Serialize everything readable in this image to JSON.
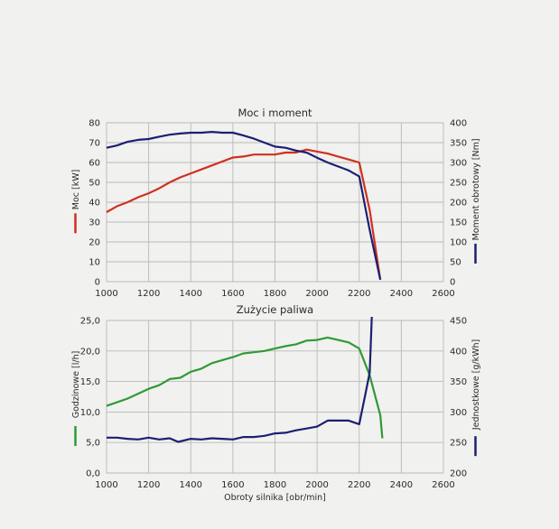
{
  "chart_data": [
    {
      "type": "line",
      "title": "Moc i moment",
      "xlabel": "",
      "ylabel_left": "Moc [kW]",
      "ylabel_right": "Moment obrotowy [Nm]",
      "xlim": [
        1000,
        2600
      ],
      "ylim_left": [
        0,
        80
      ],
      "ylim_right": [
        0,
        400
      ],
      "x_ticks": [
        "1000",
        "1200",
        "1400",
        "1600",
        "1800",
        "2000",
        "2200",
        "2400",
        "2600"
      ],
      "y_left_ticks": [
        "0",
        "10",
        "20",
        "30",
        "40",
        "50",
        "60",
        "70",
        "80"
      ],
      "y_right_ticks": [
        "0",
        "50",
        "100",
        "150",
        "200",
        "250",
        "300",
        "350",
        "400"
      ],
      "grid": true,
      "series": [
        {
          "axis": "left",
          "color": "#d0301f",
          "x": [
            1000,
            1050,
            1100,
            1150,
            1200,
            1250,
            1300,
            1350,
            1400,
            1450,
            1500,
            1550,
            1600,
            1650,
            1700,
            1750,
            1800,
            1850,
            1900,
            1950,
            2000,
            2050,
            2100,
            2150,
            2200,
            2250,
            2300
          ],
          "y": [
            35,
            38,
            40,
            42.5,
            44.5,
            47,
            50,
            52.5,
            54.5,
            56.5,
            58.5,
            60.5,
            62.5,
            63,
            64,
            64,
            64,
            65,
            65,
            66.5,
            65.5,
            64.5,
            63,
            61.5,
            60,
            36,
            1
          ]
        },
        {
          "axis": "right",
          "color": "#1b1f73",
          "x": [
            1000,
            1050,
            1100,
            1150,
            1200,
            1250,
            1300,
            1350,
            1400,
            1450,
            1500,
            1550,
            1600,
            1650,
            1700,
            1750,
            1800,
            1850,
            1900,
            1950,
            2000,
            2050,
            2100,
            2150,
            2200,
            2250,
            2300
          ],
          "y": [
            337,
            343,
            352,
            357,
            359,
            365,
            370,
            373,
            375,
            375,
            377,
            375,
            375,
            368,
            360,
            350,
            340,
            337,
            330,
            325,
            312,
            300,
            290,
            280,
            265,
            130,
            5
          ]
        }
      ]
    },
    {
      "type": "line",
      "title": "Zużycie paliwa",
      "xlabel": "Obroty silnika [obr/min]",
      "ylabel_left": "Godzinowe [l/h]",
      "ylabel_right": "Jednostkowe [g/kWh]",
      "xlim": [
        1000,
        2600
      ],
      "ylim_left": [
        0,
        25
      ],
      "ylim_right": [
        200,
        450
      ],
      "x_ticks": [
        "1000",
        "1200",
        "1400",
        "1600",
        "1800",
        "2000",
        "2200",
        "2400",
        "2600"
      ],
      "y_left_ticks": [
        "0,0",
        "5,0",
        "10,0",
        "15,0",
        "20,0",
        "25,0"
      ],
      "y_right_ticks": [
        "200",
        "250",
        "300",
        "350",
        "400",
        "450"
      ],
      "grid": true,
      "series": [
        {
          "axis": "left",
          "color": "#2f9a35",
          "x": [
            1000,
            1050,
            1100,
            1150,
            1200,
            1250,
            1300,
            1350,
            1400,
            1450,
            1500,
            1550,
            1600,
            1650,
            1700,
            1750,
            1800,
            1850,
            1900,
            1950,
            2000,
            2050,
            2100,
            2150,
            2200,
            2250,
            2300,
            2310
          ],
          "y": [
            11,
            11.6,
            12.2,
            13,
            13.8,
            14.4,
            15.4,
            15.6,
            16.6,
            17.1,
            18,
            18.5,
            19,
            19.6,
            19.8,
            20,
            20.4,
            20.8,
            21.1,
            21.7,
            21.8,
            22.2,
            21.8,
            21.4,
            20.4,
            16,
            9.5,
            5.7
          ]
        },
        {
          "axis": "right",
          "color": "#1b1f73",
          "x": [
            1000,
            1050,
            1100,
            1150,
            1200,
            1250,
            1300,
            1340,
            1400,
            1450,
            1500,
            1550,
            1600,
            1650,
            1700,
            1750,
            1800,
            1850,
            1900,
            1950,
            2000,
            2050,
            2100,
            2150,
            2200,
            2230,
            2250,
            2260
          ],
          "y": [
            258,
            258,
            256,
            255,
            258,
            255,
            257,
            251,
            256,
            255,
            257,
            256,
            255,
            259,
            259,
            261,
            265,
            266,
            270,
            273,
            276,
            286,
            286,
            286,
            280,
            330,
            365,
            460
          ]
        }
      ]
    }
  ]
}
